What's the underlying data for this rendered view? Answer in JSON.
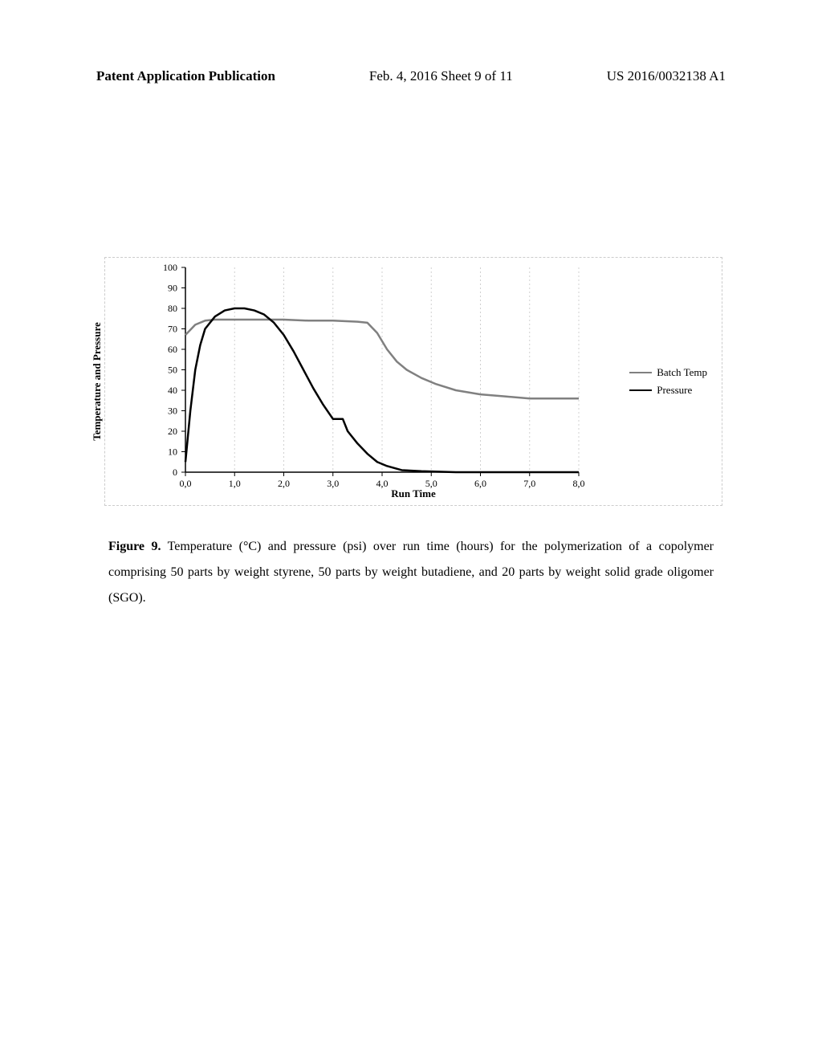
{
  "header": {
    "left": "Patent Application Publication",
    "center": "Feb. 4, 2016   Sheet 9 of 11",
    "right": "US 2016/0032138 A1"
  },
  "chart": {
    "type": "line",
    "y_label": "Temperature and Pressure",
    "x_label": "Run Time",
    "xlim": [
      0.0,
      8.0
    ],
    "ylim": [
      0,
      100
    ],
    "x_ticks": [
      "0,0",
      "1,0",
      "2,0",
      "3,0",
      "4,0",
      "5,0",
      "6,0",
      "7,0",
      "8,0"
    ],
    "y_ticks": [
      0,
      10,
      20,
      30,
      40,
      50,
      60,
      70,
      80,
      90,
      100
    ],
    "grid_color": "#d0d0d0",
    "background_color": "#ffffff",
    "axis_color": "#000000",
    "tick_fontsize": 12,
    "axis_fontsize": 14,
    "series": [
      {
        "name": "Batch Temp",
        "color": "#808080",
        "width": 2.5,
        "data": [
          [
            0.0,
            67
          ],
          [
            0.2,
            72
          ],
          [
            0.4,
            74
          ],
          [
            0.6,
            74.5
          ],
          [
            0.8,
            74.5
          ],
          [
            1.0,
            74.5
          ],
          [
            1.5,
            74.5
          ],
          [
            2.0,
            74.5
          ],
          [
            2.5,
            74
          ],
          [
            3.0,
            74
          ],
          [
            3.5,
            73.5
          ],
          [
            3.7,
            73
          ],
          [
            3.9,
            68
          ],
          [
            4.1,
            60
          ],
          [
            4.3,
            54
          ],
          [
            4.5,
            50
          ],
          [
            4.8,
            46
          ],
          [
            5.1,
            43
          ],
          [
            5.5,
            40
          ],
          [
            6.0,
            38
          ],
          [
            6.5,
            37
          ],
          [
            7.0,
            36
          ],
          [
            7.5,
            36
          ],
          [
            8.0,
            36
          ]
        ]
      },
      {
        "name": "Pressure",
        "color": "#000000",
        "width": 2.5,
        "data": [
          [
            0.0,
            5
          ],
          [
            0.1,
            30
          ],
          [
            0.2,
            50
          ],
          [
            0.3,
            62
          ],
          [
            0.4,
            70
          ],
          [
            0.6,
            76
          ],
          [
            0.8,
            79
          ],
          [
            1.0,
            80
          ],
          [
            1.2,
            80
          ],
          [
            1.4,
            79
          ],
          [
            1.6,
            77
          ],
          [
            1.8,
            73
          ],
          [
            2.0,
            67
          ],
          [
            2.2,
            59
          ],
          [
            2.4,
            50
          ],
          [
            2.6,
            41
          ],
          [
            2.8,
            33
          ],
          [
            3.0,
            26
          ],
          [
            3.2,
            26
          ],
          [
            3.3,
            20
          ],
          [
            3.5,
            14
          ],
          [
            3.7,
            9
          ],
          [
            3.9,
            5
          ],
          [
            4.1,
            3
          ],
          [
            4.4,
            1
          ],
          [
            4.8,
            0.5
          ],
          [
            5.5,
            0
          ],
          [
            7.0,
            0
          ],
          [
            8.0,
            0
          ]
        ]
      }
    ],
    "legend": {
      "items": [
        {
          "label": "Batch Temp",
          "color": "#808080"
        },
        {
          "label": "Pressure",
          "color": "#000000"
        }
      ]
    }
  },
  "caption": {
    "label": "Figure 9.",
    "text": " Temperature (°C) and pressure (psi) over run time (hours) for the polymerization of a copolymer comprising 50 parts by weight styrene, 50 parts by weight butadiene, and 20 parts by weight solid grade oligomer (SGO)."
  }
}
